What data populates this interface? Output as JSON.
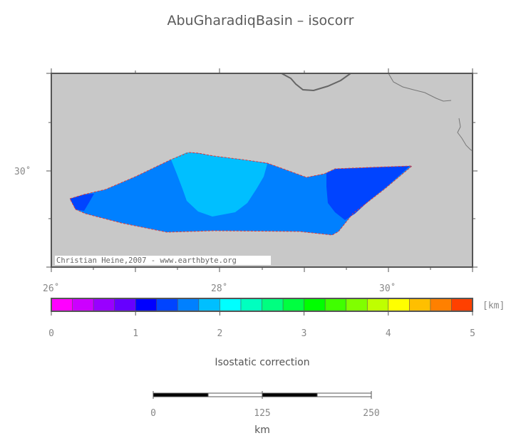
{
  "title": "AbuGharadiqBasin – isocorr",
  "map": {
    "lat_label": "30˚",
    "lon_labels": [
      "26˚",
      "28˚",
      "30˚"
    ],
    "credit": "Christian Heine,2007 - www.earthbyte.org",
    "colors": {
      "land": "#c8c8c8",
      "frame": "#555555",
      "coast": "#666666",
      "zone_1_25": "#0044ff",
      "zone_1_5": "#0080ff",
      "zone_1_75": "#00bfff",
      "boundary": "#e03a3a"
    }
  },
  "colorbar": {
    "unit": "[km]",
    "ticks": [
      "0",
      "1",
      "2",
      "3",
      "4",
      "5"
    ],
    "min": 0,
    "max": 5,
    "step": 0.25,
    "colors": [
      "#ff00ff",
      "#cc00ff",
      "#9900ff",
      "#6600ff",
      "#0000ff",
      "#0044ff",
      "#0080ff",
      "#00bfff",
      "#00ffff",
      "#00ffbf",
      "#00ff80",
      "#00ff40",
      "#00ff00",
      "#40ff00",
      "#80ff00",
      "#bfff00",
      "#ffff00",
      "#ffbf00",
      "#ff8000",
      "#ff4000"
    ],
    "label": "Isostatic correction"
  },
  "scalebar": {
    "ticks": [
      "0",
      "125",
      "250"
    ],
    "unit": "km"
  }
}
